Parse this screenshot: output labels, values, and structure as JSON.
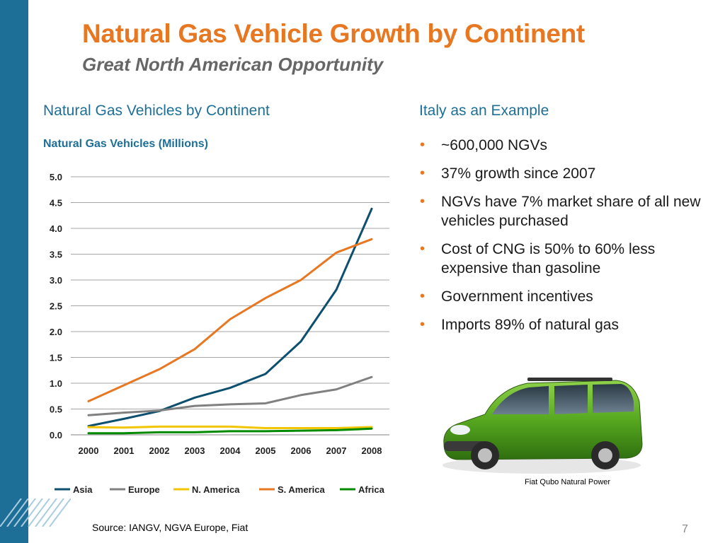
{
  "slide": {
    "title": "Natural Gas Vehicle Growth by Continent",
    "subtitle": "Great North American Opportunity",
    "left_heading": "Natural Gas Vehicles by Continent",
    "right_heading": "Italy as an Example",
    "chart_title": "Natural Gas Vehicles (Millions)",
    "bullets": [
      "~600,000 NGVs",
      "37% growth since 2007",
      "NGVs have 7% market share of all new vehicles purchased",
      "Cost of CNG is 50% to 60% less expensive than gasoline",
      "Government incentives",
      "Imports 89% of natural gas"
    ],
    "car_caption": "Fiat Qubo Natural Power",
    "source": "Source: IANGV, NGVA Europe, Fiat",
    "page_number": "7"
  },
  "colors": {
    "accent_orange": "#e87722",
    "brand_blue": "#1e6f97",
    "subtitle_gray": "#666666"
  },
  "chart_data": {
    "type": "line",
    "title": "Natural Gas Vehicles (Millions)",
    "categories": [
      "2000",
      "2001",
      "2002",
      "2003",
      "2004",
      "2005",
      "2006",
      "2007",
      "2008"
    ],
    "yticks": [
      "0.0",
      "0.5",
      "1.0",
      "1.5",
      "2.0",
      "2.5",
      "3.0",
      "3.5",
      "4.0",
      "4.5",
      "5.0"
    ],
    "ylim": [
      0,
      5
    ],
    "grid": true,
    "legend_position": "bottom",
    "series": [
      {
        "name": "Asia",
        "color": "#0d4f6e",
        "values": [
          0.17,
          0.31,
          0.46,
          0.72,
          0.91,
          1.18,
          1.81,
          2.81,
          4.38
        ]
      },
      {
        "name": "Europe",
        "color": "#808080",
        "values": [
          0.38,
          0.43,
          0.47,
          0.56,
          0.59,
          0.61,
          0.77,
          0.88,
          1.12
        ]
      },
      {
        "name": "N. America",
        "color": "#f2c500",
        "values": [
          0.15,
          0.14,
          0.16,
          0.16,
          0.16,
          0.13,
          0.13,
          0.13,
          0.15
        ]
      },
      {
        "name": "S. America",
        "color": "#e87722",
        "values": [
          0.65,
          0.96,
          1.27,
          1.66,
          2.24,
          2.65,
          3.0,
          3.53,
          3.79
        ]
      },
      {
        "name": "Africa",
        "color": "#008a00",
        "values": [
          0.03,
          0.03,
          0.05,
          0.05,
          0.07,
          0.07,
          0.08,
          0.09,
          0.12
        ]
      }
    ]
  }
}
